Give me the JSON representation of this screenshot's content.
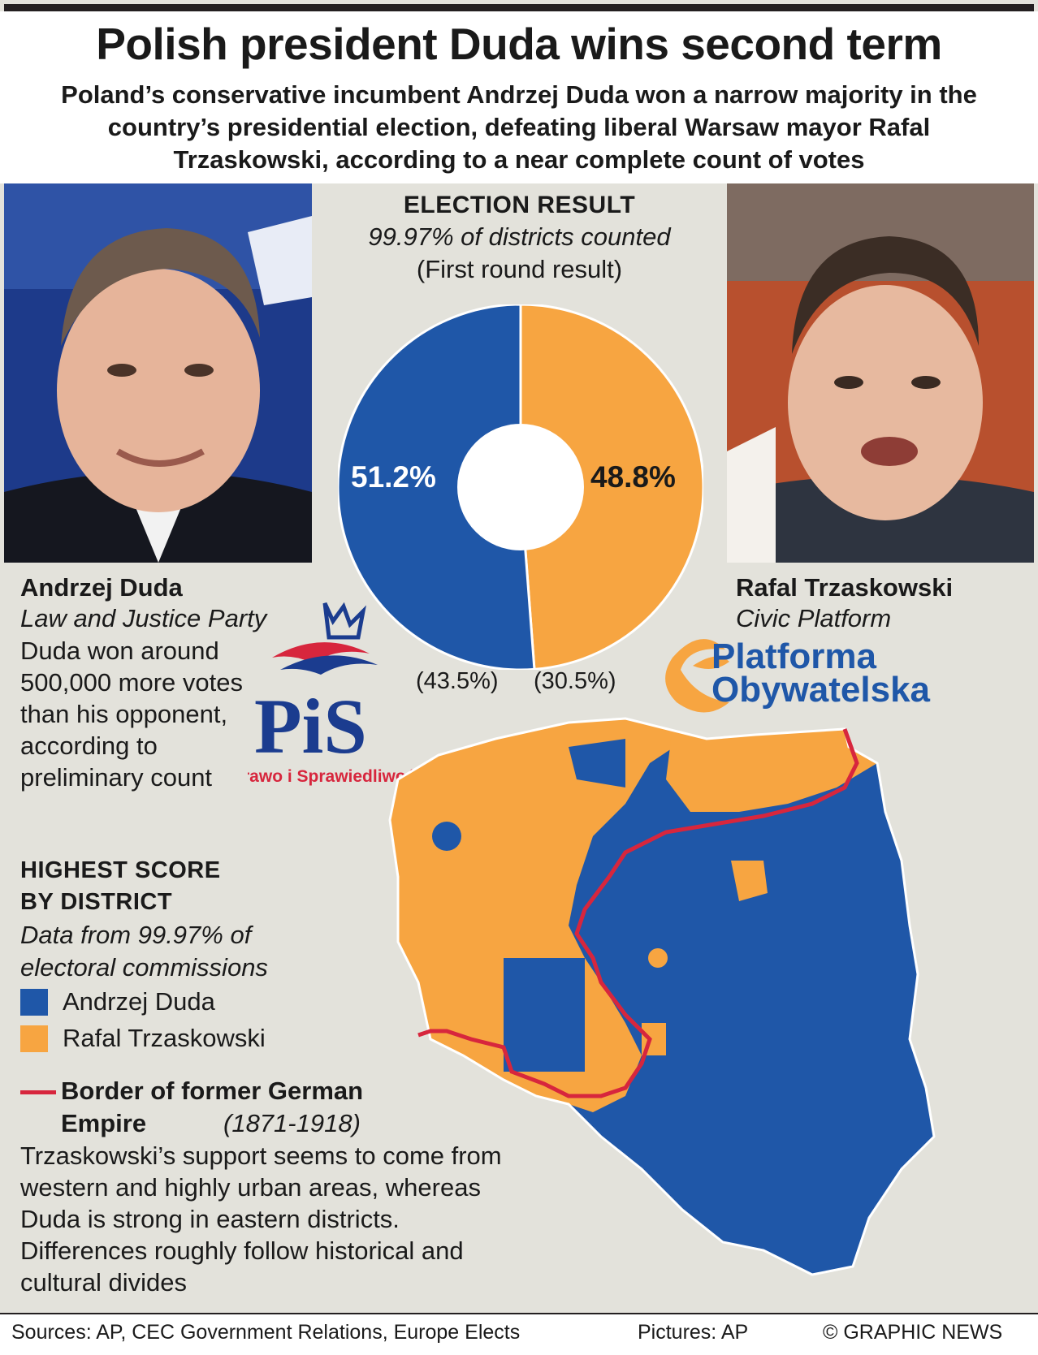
{
  "header": {
    "title": "Polish president Duda wins second term",
    "subtitle": "Poland’s conservative incumbent Andrzej Duda won a narrow majority in the country’s presidential election, defeating liberal Warsaw mayor Rafal Trzaskowski, according to a near complete count of votes"
  },
  "election_result": {
    "title": "ELECTION RESULT",
    "subtitle": "99.97% of districts counted",
    "first_round_note": "(First round result)",
    "duda_pct": "51.2%",
    "trzaskowski_pct": "48.8%",
    "duda_first_round": "(43.5%)",
    "trzaskowski_first_round": "(30.5%)"
  },
  "chart_data": {
    "type": "pie",
    "categories": [
      "Andrzej Duda",
      "Rafal Trzaskowski"
    ],
    "values": [
      51.2,
      48.8
    ],
    "first_round_values": [
      43.5,
      30.5
    ],
    "colors": [
      "#1f57a8",
      "#f7a541"
    ]
  },
  "candidates": {
    "left": {
      "name": "Andrzej Duda",
      "party": "Law and Justice Party",
      "note": "Duda won around 500,000 more votes than his opponent, according to preliminary count"
    },
    "right": {
      "name": "Rafal Trzaskowski",
      "party": "Civic Platform"
    }
  },
  "logos": {
    "pis": {
      "letters": "PiS",
      "caption": "Prawo i Sprawiedliwość",
      "color": "#1b3c8f",
      "accent": "#d7263d"
    },
    "po": {
      "line1": "Platforma",
      "line2": "Obywatelska",
      "color": "#1f57a8",
      "accent": "#f7a541"
    }
  },
  "legend": {
    "title_line1": "HIGHEST SCORE",
    "title_line2": "BY DISTRICT",
    "subtitle": "Data from 99.97% of electoral commissions",
    "items": [
      {
        "label": "Andrzej Duda",
        "color": "#1f57a8"
      },
      {
        "label": "Rafal Trzaskowski",
        "color": "#f7a541"
      }
    ],
    "border_label_bold": "Border of former German Empire",
    "border_label_italic": "(1871-1918)",
    "border_color": "#d7263d",
    "border_note": "Trzaskowski’s support seems to come from western and highly urban areas, whereas Duda is strong in eastern districts. Differences roughly follow historical and cultural divides"
  },
  "footer": {
    "sources": "Sources: AP, CEC Government Relations, Europe Elects",
    "pictures": "Pictures: AP",
    "copyright": "© GRAPHIC NEWS"
  }
}
